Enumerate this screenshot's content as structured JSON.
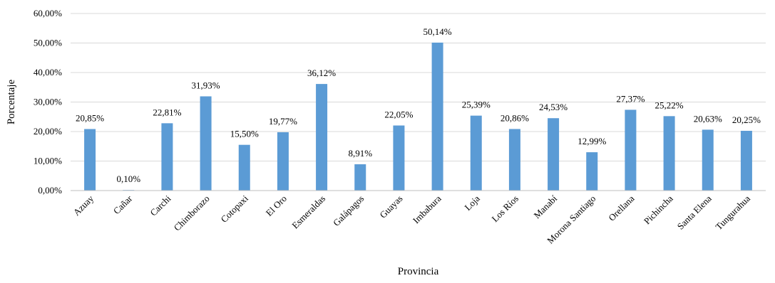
{
  "chart_data": {
    "type": "bar",
    "categories": [
      "Azuay",
      "Cañar",
      "Carchi",
      "Chimborazo",
      "Cotopaxi",
      "El Oro",
      "Esmeraldas",
      "Galápagos",
      "Guayas",
      "Imbabura",
      "Loja",
      "Los Ríos",
      "Manabí",
      "Morona Santiago",
      "Orellana",
      "Pichincha",
      "Santa Elena",
      "Tungurahua"
    ],
    "values": [
      20.85,
      0.1,
      22.81,
      31.93,
      15.5,
      19.77,
      36.12,
      8.91,
      22.05,
      50.14,
      25.39,
      20.86,
      24.53,
      12.99,
      27.37,
      25.22,
      20.63,
      20.25
    ],
    "data_labels": [
      "20,85%",
      "0,10%",
      "22,81%",
      "31,93%",
      "15,50%",
      "19,77%",
      "36,12%",
      "8,91%",
      "22,05%",
      "50,14%",
      "25,39%",
      "20,86%",
      "24,53%",
      "12,99%",
      "27,37%",
      "25,22%",
      "20,63%",
      "20,25%"
    ],
    "ylim": [
      0,
      60
    ],
    "yticks": [
      0,
      10,
      20,
      30,
      40,
      50,
      60
    ],
    "ytick_labels": [
      "0,00%",
      "10,00%",
      "20,00%",
      "30,00%",
      "40,00%",
      "50,00%",
      "60,00%"
    ],
    "title": "",
    "xlabel": "Provincia",
    "ylabel": "Porcentaje",
    "grid": true,
    "legend": false,
    "colors": {
      "bar": "#5B9BD5",
      "grid": "#D9D9D9",
      "axis": "#BFBFBF",
      "text": "#000000"
    }
  }
}
